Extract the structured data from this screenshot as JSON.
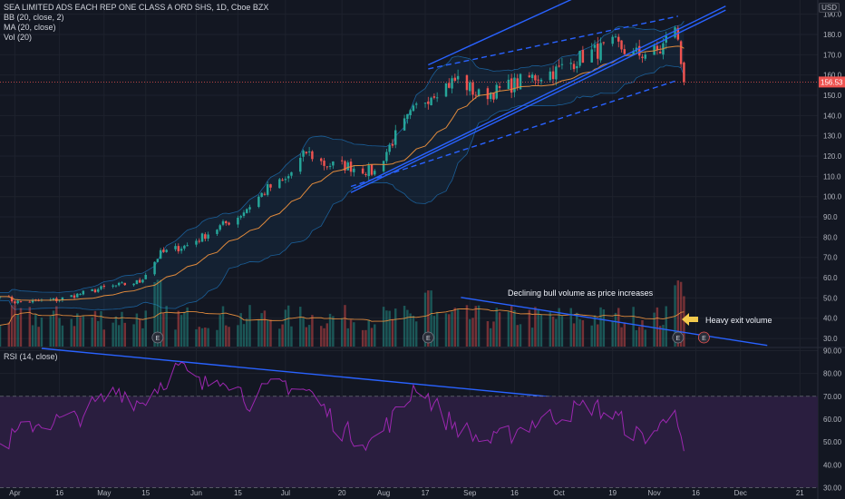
{
  "legend": {
    "title": "SEA LIMITED ADS EACH REP ONE CLASS A ORD SHS, 1D, Cboe BZX",
    "bb": "BB (20, close, 2)",
    "ma": "MA (20, close)",
    "vol": "Vol (20)",
    "rsi": "RSI (14, close)",
    "currency": "USD"
  },
  "annotations": {
    "volume_note": "Declining bull volume as price increases",
    "exit_note": "Heavy exit volume",
    "earnings_marker": "E"
  },
  "colors": {
    "background": "#131722",
    "up": "#26a69a",
    "down": "#ef5350",
    "trendline": "#2962ff",
    "rsi_line": "#9c27b0",
    "rsi_band": "#2a1e3f",
    "ma": "#e08a3c",
    "bb": "#2196f3",
    "arrow": "#f2c94c"
  },
  "chart_data": {
    "type": "candlestick",
    "price_axis": {
      "ticks": [
        30,
        40,
        50,
        60,
        70,
        80,
        90,
        100,
        110,
        120,
        130,
        140,
        150,
        160,
        170,
        180,
        190
      ],
      "ylim": [
        26,
        197
      ]
    },
    "rsi_axis": {
      "ticks": [
        30,
        40,
        50,
        60,
        70,
        80,
        90
      ],
      "ylim": [
        25,
        91
      ],
      "bands": [
        30,
        70
      ]
    },
    "x_labels": [
      "Apr",
      "16",
      "May",
      "15",
      "Jun",
      "15",
      "Jul",
      "20",
      "Aug",
      "17",
      "Sep",
      "16",
      "Oct",
      "19",
      "Nov",
      "16",
      "Dec",
      "21"
    ],
    "last_price": "156.53",
    "price_waypoints": [
      [
        "2020-03-27",
        52
      ],
      [
        "2020-04-01",
        48
      ],
      [
        "2020-04-15",
        49
      ],
      [
        "2020-05-01",
        55
      ],
      [
        "2020-05-13",
        58
      ],
      [
        "2020-05-20",
        72
      ],
      [
        "2020-05-29",
        76
      ],
      [
        "2020-06-10",
        86
      ],
      [
        "2020-06-15",
        90
      ],
      [
        "2020-06-25",
        104
      ],
      [
        "2020-07-01",
        108
      ],
      [
        "2020-07-08",
        122
      ],
      [
        "2020-07-14",
        116
      ],
      [
        "2020-07-22",
        115
      ],
      [
        "2020-07-31",
        112
      ],
      [
        "2020-08-07",
        130
      ],
      [
        "2020-08-14",
        144
      ],
      [
        "2020-08-20",
        152
      ],
      [
        "2020-08-28",
        158
      ],
      [
        "2020-09-04",
        150
      ],
      [
        "2020-09-10",
        152
      ],
      [
        "2020-09-20",
        158
      ],
      [
        "2020-09-30",
        162
      ],
      [
        "2020-10-10",
        170
      ],
      [
        "2020-10-20",
        175
      ],
      [
        "2020-10-26",
        170
      ],
      [
        "2020-11-04",
        172
      ],
      [
        "2020-11-09",
        185
      ],
      [
        "2020-11-12",
        156.53
      ]
    ],
    "rsi_waypoints": [
      [
        "2020-03-27",
        48
      ],
      [
        "2020-04-07",
        58
      ],
      [
        "2020-04-21",
        60
      ],
      [
        "2020-05-06",
        73
      ],
      [
        "2020-05-13",
        67
      ],
      [
        "2020-05-26",
        83
      ],
      [
        "2020-06-03",
        74
      ],
      [
        "2020-06-10",
        80
      ],
      [
        "2020-06-19",
        68
      ],
      [
        "2020-06-30",
        76
      ],
      [
        "2020-07-09",
        72
      ],
      [
        "2020-07-20",
        55
      ],
      [
        "2020-07-30",
        50
      ],
      [
        "2020-08-10",
        66
      ],
      [
        "2020-08-14",
        76
      ],
      [
        "2020-08-24",
        60
      ],
      [
        "2020-09-03",
        52
      ],
      [
        "2020-09-09",
        50
      ],
      [
        "2020-09-21",
        58
      ],
      [
        "2020-10-01",
        62
      ],
      [
        "2020-10-12",
        66
      ],
      [
        "2020-10-21",
        60
      ],
      [
        "2020-10-28",
        52
      ],
      [
        "2020-11-04",
        56
      ],
      [
        "2020-11-09",
        68
      ],
      [
        "2020-11-12",
        46
      ]
    ],
    "earnings_dates": [
      "2020-05-19",
      "2020-08-18",
      "2020-11-10"
    ],
    "trendlines": [
      {
        "pane": "price",
        "from": [
          "2020-07-23",
          102
        ],
        "to": [
          "2020-11-26",
          192
        ],
        "style": "solid"
      },
      {
        "pane": "price",
        "from": [
          "2020-07-24",
          104
        ],
        "to": [
          "2020-11-26",
          194
        ],
        "style": "solid"
      },
      {
        "pane": "price",
        "from": [
          "2020-07-23",
          105
        ],
        "to": [
          "2020-11-09",
          157
        ],
        "style": "dashed"
      },
      {
        "pane": "price",
        "from": [
          "2020-08-18",
          165
        ],
        "to": [
          "2020-11-26",
          232
        ],
        "style": "solid"
      },
      {
        "pane": "price",
        "from": [
          "2020-08-18",
          163
        ],
        "to": [
          "2020-11-10",
          189
        ],
        "style": "dashed"
      },
      {
        "pane": "volume",
        "from": [
          "2020-08-29",
          0.86
        ],
        "to": [
          "2020-12-10",
          0.02
        ],
        "style": "solid"
      },
      {
        "pane": "rsi",
        "from": [
          "2020-04-10",
          91
        ],
        "to": [
          "2020-12-24",
          59
        ],
        "style": "solid"
      }
    ]
  }
}
